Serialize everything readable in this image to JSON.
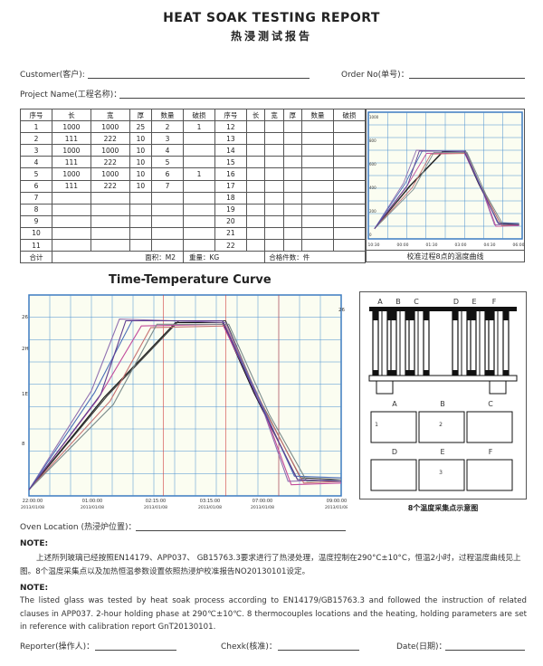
{
  "title": "HEAT SOAK TESTING REPORT",
  "title_cn": "热浸测试报告",
  "fields": {
    "customer": "Customer(客户):",
    "order_no": "Order No(单号)：",
    "project": "Project Name(工程名称)："
  },
  "table": {
    "headers": [
      "序号",
      "长",
      "宽",
      "厚",
      "数量",
      "破损",
      "序号",
      "长",
      "宽",
      "厚",
      "数量",
      "破损"
    ],
    "rows": [
      [
        "1",
        "1000",
        "1000",
        "25",
        "2",
        "1",
        "12",
        "",
        "",
        "",
        "",
        ""
      ],
      [
        "2",
        "111",
        "222",
        "10",
        "3",
        "",
        "13",
        "",
        "",
        "",
        "",
        ""
      ],
      [
        "3",
        "1000",
        "1000",
        "10",
        "4",
        "",
        "14",
        "",
        "",
        "",
        "",
        ""
      ],
      [
        "4",
        "111",
        "222",
        "10",
        "5",
        "",
        "15",
        "",
        "",
        "",
        "",
        ""
      ],
      [
        "5",
        "1000",
        "1000",
        "10",
        "6",
        "1",
        "16",
        "",
        "",
        "",
        "",
        ""
      ],
      [
        "6",
        "111",
        "222",
        "10",
        "7",
        "",
        "17",
        "",
        "",
        "",
        "",
        ""
      ],
      [
        "7",
        "",
        "",
        "",
        "",
        "",
        "18",
        "",
        "",
        "",
        "",
        ""
      ],
      [
        "8",
        "",
        "",
        "",
        "",
        "",
        "19",
        "",
        "",
        "",
        "",
        ""
      ],
      [
        "9",
        "",
        "",
        "",
        "",
        "",
        "20",
        "",
        "",
        "",
        "",
        ""
      ],
      [
        "10",
        "",
        "",
        "",
        "",
        "",
        "21",
        "",
        "",
        "",
        "",
        ""
      ],
      [
        "11",
        "",
        "",
        "",
        "",
        "",
        "22",
        "",
        "",
        "",
        "",
        ""
      ]
    ],
    "footer": {
      "total": "合计",
      "area": "面积：M2",
      "weight": "重量：KG",
      "qualified": "合格件数：件"
    }
  },
  "calibration_caption": "校准过程8点的温度曲线",
  "curve_title": "Time-Temperature Curve",
  "thermo_caption": "8个温度采集点示意图",
  "thermo": {
    "columns": [
      "A",
      "B",
      "C",
      "D",
      "E",
      "F"
    ],
    "boxes": [
      {
        "label": "A",
        "num": "1"
      },
      {
        "label": "B",
        "num": "2"
      },
      {
        "label": "C",
        "num": ""
      },
      {
        "label": "D",
        "num": ""
      },
      {
        "label": "E",
        "num": "3"
      },
      {
        "label": "F",
        "num": ""
      }
    ]
  },
  "oven_location": "Oven Location (热浸炉位置)：",
  "note1_head": "NOTE:",
  "note1_text": "上述所列玻璃已经按照EN14179、APP037、 GB15763.3要求进行了热浸处理，温度控制在290°C±10°C，恒温2小时，过程温度曲线见上图。8个温度采集点以及加热恒温参数设置依照热浸炉校准报告NO20130101设定。",
  "note2_head": "NOTE:",
  "note2_text": "The listed glass was tested by heat soak process according to EN14179/GB15763.3 and followed the instruction of related clauses in APP037. 2-hour holding phase at 290℃±10℃. 8 thermocouples locations and the heating, holding parameters are set in reference with calibration report GnT20130101.",
  "signatures": {
    "reporter": "Reporter(操作人)：",
    "check": "Chexk(核准)：",
    "date": "Date(日期)："
  },
  "chart_data": {
    "type": "line",
    "main_y_ticks": [
      "26",
      "2H",
      "1E",
      "8"
    ],
    "main_x_ticks": [
      "22:00:00",
      "01:00:00",
      "02:15:00",
      "03:15:00",
      "07:00:00",
      "09:00:00"
    ],
    "main_x_dates": [
      "2013/01/08",
      "2013/01/08",
      "2013/01/08",
      "2013/01/08",
      "2013/01/08",
      "2013/01/08"
    ],
    "main_top_right": "26",
    "small_y_ticks": [
      "1000",
      "800",
      "600",
      "400",
      "200",
      "0"
    ],
    "small_x_ticks": [
      "10:30",
      "00:00",
      "01:30",
      "03:00",
      "04:30",
      "06:00"
    ],
    "colors": {
      "grid": "#4a8fd0",
      "bg": "#fbfdf1",
      "border": "#3c7bc1"
    },
    "series": [
      {
        "color": "#111111",
        "values": [
          [
            0,
            0
          ],
          [
            0.24,
            0.54
          ],
          [
            0.47,
            0.98
          ],
          [
            0.62,
            0.98
          ],
          [
            0.72,
            0.57
          ],
          [
            0.86,
            0.06
          ],
          [
            1,
            0.05
          ]
        ]
      },
      {
        "color": "#333333",
        "values": [
          [
            0,
            0
          ],
          [
            0.25,
            0.55
          ],
          [
            0.48,
            0.99
          ],
          [
            0.63,
            0.99
          ],
          [
            0.73,
            0.56
          ],
          [
            0.87,
            0.07
          ],
          [
            1,
            0.06
          ]
        ]
      },
      {
        "color": "#8f6fb0",
        "values": [
          [
            0,
            0
          ],
          [
            0.2,
            0.58
          ],
          [
            0.29,
            1.0
          ],
          [
            0.63,
            0.98
          ],
          [
            0.74,
            0.52
          ],
          [
            0.83,
            0.05
          ],
          [
            1,
            0.06
          ]
        ]
      },
      {
        "color": "#c24b9b",
        "values": [
          [
            0,
            0
          ],
          [
            0.22,
            0.53
          ],
          [
            0.36,
            0.96
          ],
          [
            0.62,
            0.97
          ],
          [
            0.75,
            0.48
          ],
          [
            0.84,
            0.03
          ],
          [
            1,
            0.04
          ]
        ]
      },
      {
        "color": "#c77272",
        "values": [
          [
            0,
            0
          ],
          [
            0.26,
            0.52
          ],
          [
            0.39,
            0.95
          ],
          [
            0.63,
            0.96
          ],
          [
            0.76,
            0.45
          ],
          [
            0.88,
            0.04
          ],
          [
            1,
            0.05
          ]
        ]
      },
      {
        "color": "#4d6fb8",
        "values": [
          [
            0,
            0
          ],
          [
            0.21,
            0.57
          ],
          [
            0.33,
            0.99
          ],
          [
            0.62,
            0.99
          ],
          [
            0.72,
            0.6
          ],
          [
            0.85,
            0.08
          ],
          [
            1,
            0.07
          ]
        ]
      },
      {
        "color": "#7a8a8a",
        "values": [
          [
            0,
            0
          ],
          [
            0.27,
            0.5
          ],
          [
            0.41,
            0.97
          ],
          [
            0.64,
            0.97
          ],
          [
            0.77,
            0.44
          ],
          [
            0.89,
            0.05
          ],
          [
            1,
            0.06
          ]
        ]
      },
      {
        "color": "#5e3c8f",
        "values": [
          [
            0,
            0
          ],
          [
            0.23,
            0.56
          ],
          [
            0.31,
            0.99
          ],
          [
            0.62,
            0.99
          ],
          [
            0.73,
            0.54
          ],
          [
            0.86,
            0.06
          ],
          [
            1,
            0.05
          ]
        ]
      }
    ]
  }
}
